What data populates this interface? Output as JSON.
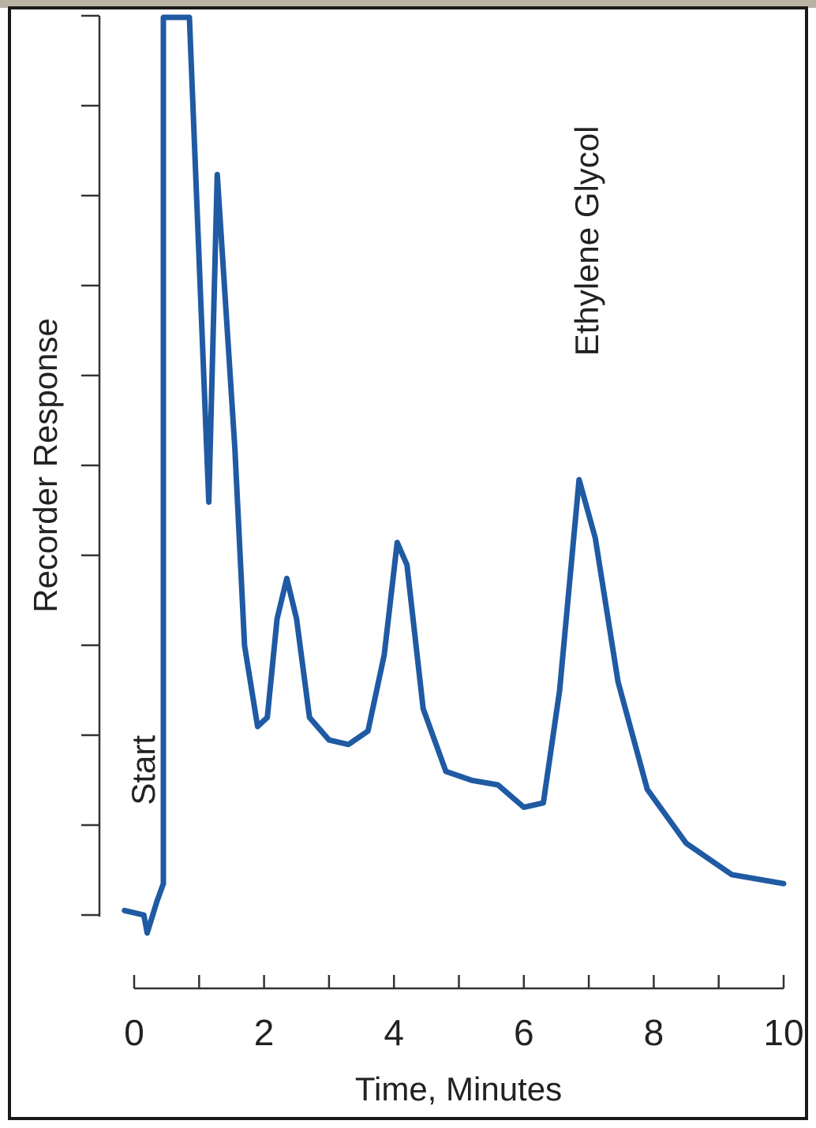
{
  "chart_data": {
    "type": "line",
    "xlabel": "Time, Minutes",
    "ylabel": "Recorder Response",
    "xlim": [
      0,
      10
    ],
    "x_ticks_major": [
      0,
      2,
      4,
      6,
      8,
      10
    ],
    "x_ticks_minor": [
      1,
      3,
      5,
      7,
      9
    ],
    "y_tick_count": 11,
    "grid": false,
    "line_color": "#1f5aa3",
    "axis_color": "#333333",
    "annotations": [
      {
        "text": "Start",
        "x": 0.1,
        "y": 1.4
      },
      {
        "text": "Ethylene Glycol",
        "x": 6.9,
        "y": 8.6
      }
    ],
    "series": [
      {
        "points": [
          [
            -0.15,
            0.05
          ],
          [
            0.15,
            0.0
          ],
          [
            0.2,
            -0.2
          ],
          [
            0.35,
            0.15
          ],
          [
            0.45,
            0.35
          ],
          [
            0.45,
            10.0
          ],
          [
            0.85,
            10.0
          ],
          [
            1.15,
            4.6
          ],
          [
            1.28,
            8.25
          ],
          [
            1.55,
            5.2
          ],
          [
            1.7,
            3.0
          ],
          [
            1.9,
            2.1
          ],
          [
            2.05,
            2.2
          ],
          [
            2.2,
            3.3
          ],
          [
            2.35,
            3.75
          ],
          [
            2.5,
            3.3
          ],
          [
            2.7,
            2.2
          ],
          [
            3.0,
            1.95
          ],
          [
            3.3,
            1.9
          ],
          [
            3.6,
            2.05
          ],
          [
            3.85,
            2.9
          ],
          [
            4.05,
            4.15
          ],
          [
            4.2,
            3.9
          ],
          [
            4.45,
            2.3
          ],
          [
            4.8,
            1.6
          ],
          [
            5.2,
            1.5
          ],
          [
            5.6,
            1.45
          ],
          [
            6.0,
            1.2
          ],
          [
            6.3,
            1.25
          ],
          [
            6.55,
            2.5
          ],
          [
            6.85,
            4.85
          ],
          [
            7.1,
            4.2
          ],
          [
            7.45,
            2.6
          ],
          [
            7.9,
            1.4
          ],
          [
            8.5,
            0.8
          ],
          [
            9.2,
            0.45
          ],
          [
            10.0,
            0.35
          ]
        ]
      }
    ]
  }
}
